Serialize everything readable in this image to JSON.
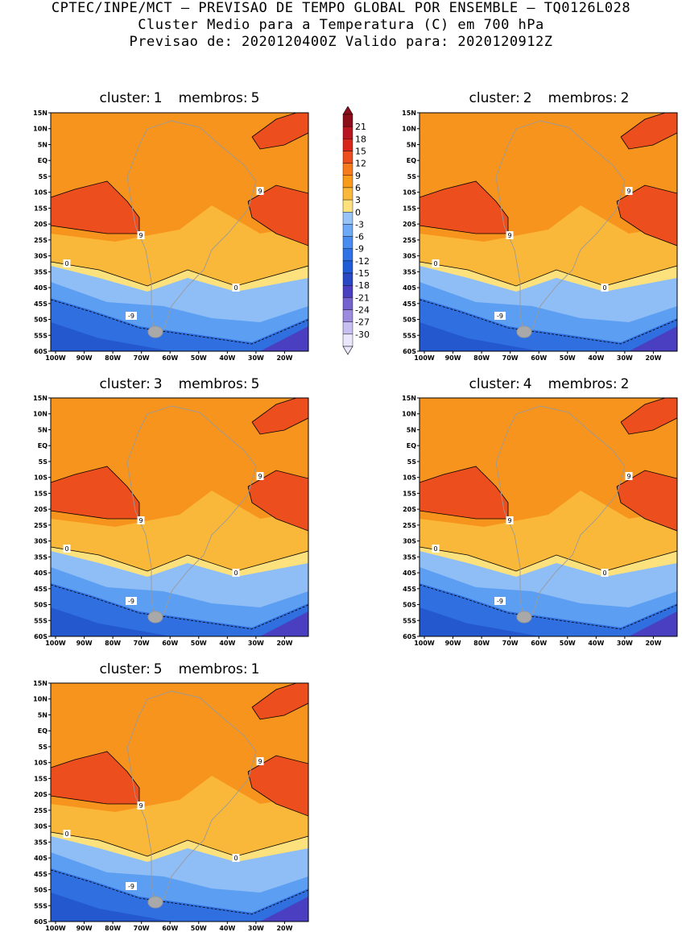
{
  "header": {
    "line1": "CPTEC/INPE/MCT – PREVISAO DE TEMPO GLOBAL POR ENSEMBLE – TQ0126L028",
    "line2": "Cluster Medio para a Temperatura (C) em 700 hPa",
    "line3": "Previsao de: 2020120400Z   Valido para: 2020120912Z"
  },
  "panels": [
    {
      "cluster_label": "cluster:",
      "cluster": "1",
      "members_label": "membros:",
      "members": "5"
    },
    {
      "cluster_label": "cluster:",
      "cluster": "2",
      "members_label": "membros:",
      "members": "2"
    },
    {
      "cluster_label": "cluster:",
      "cluster": "3",
      "members_label": "membros:",
      "members": "5"
    },
    {
      "cluster_label": "cluster:",
      "cluster": "4",
      "members_label": "membros:",
      "members": "2"
    },
    {
      "cluster_label": "cluster:",
      "cluster": "5",
      "members_label": "membros:",
      "members": "1"
    }
  ],
  "lat_labels": [
    "15N",
    "10N",
    "5N",
    "EQ",
    "5S",
    "10S",
    "15S",
    "20S",
    "25S",
    "30S",
    "35S",
    "40S",
    "45S",
    "50S",
    "55S",
    "60S"
  ],
  "lon_labels": [
    "100W",
    "90W",
    "80W",
    "70W",
    "60W",
    "50W",
    "40W",
    "30W",
    "20W"
  ],
  "colorbar": {
    "labels": [
      "21",
      "18",
      "15",
      "12",
      "9",
      "6",
      "3",
      "0",
      "-3",
      "-6",
      "-9",
      "-12",
      "-15",
      "-18",
      "-21",
      "-24",
      "-27",
      "-30"
    ],
    "colors": [
      "#8b0e1a",
      "#b81622",
      "#d7261c",
      "#ec4e1d",
      "#f77a1c",
      "#f99a1b",
      "#fab83a",
      "#fce17d",
      "#97c3f7",
      "#6da9f5",
      "#4a8df0",
      "#2e72e6",
      "#215cd7",
      "#2a47c4",
      "#4a3fc0",
      "#7462cf",
      "#9d8be0",
      "#c7bff0",
      "#eae6fb"
    ],
    "legend_icon": "triangle-arrows"
  },
  "contour_labels": {
    "warm": "9",
    "zero": "0",
    "cold": "-9"
  },
  "field_colors": {
    "t9": "#ec4e1d",
    "t6": "#f7941d",
    "t3": "#fab83a",
    "t0": "#fce17d",
    "tm3": "#8fbdf6",
    "tm6": "#5c9ef2",
    "tm9": "#2f6fe0",
    "tm12": "#2458cf",
    "land": "#a9a9a9",
    "coast": "#9a9a9a"
  }
}
